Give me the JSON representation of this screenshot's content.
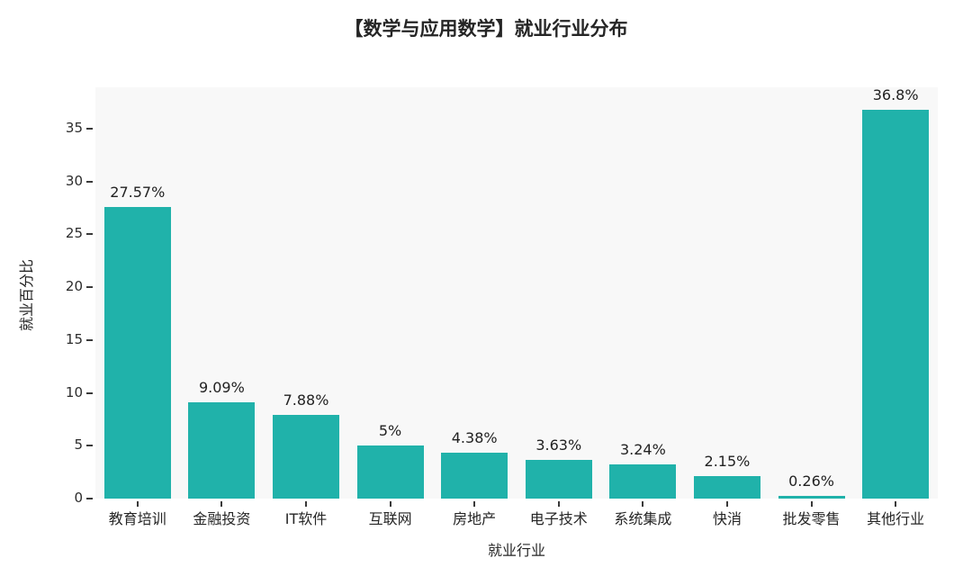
{
  "title": "【数学与应用数学】就业行业分布",
  "chart_data": {
    "type": "bar",
    "title": "【数学与应用数学】就业行业分布",
    "categories": [
      "教育培训",
      "金融投资",
      "IT软件",
      "互联网",
      "房地产",
      "电子技术",
      "系统集成",
      "快消",
      "批发零售",
      "其他行业"
    ],
    "values": [
      27.57,
      9.09,
      7.88,
      5,
      4.38,
      3.63,
      3.24,
      2.15,
      0.26,
      36.8
    ],
    "value_labels": [
      "27.57%",
      "9.09%",
      "7.88%",
      "5%",
      "4.38%",
      "3.63%",
      "3.24%",
      "2.15%",
      "0.26%",
      "36.8%"
    ],
    "xlabel": "就业行业",
    "ylabel": "就业百分比",
    "yticks": [
      0,
      5,
      10,
      15,
      20,
      25,
      30,
      35
    ],
    "ylim": [
      0,
      38.9
    ],
    "grid": false,
    "legend": null,
    "bar_color": "#20b2aa",
    "plot_bg": "#f8f8f8",
    "page_bg": "#ffffff",
    "text_color": "#262626"
  }
}
